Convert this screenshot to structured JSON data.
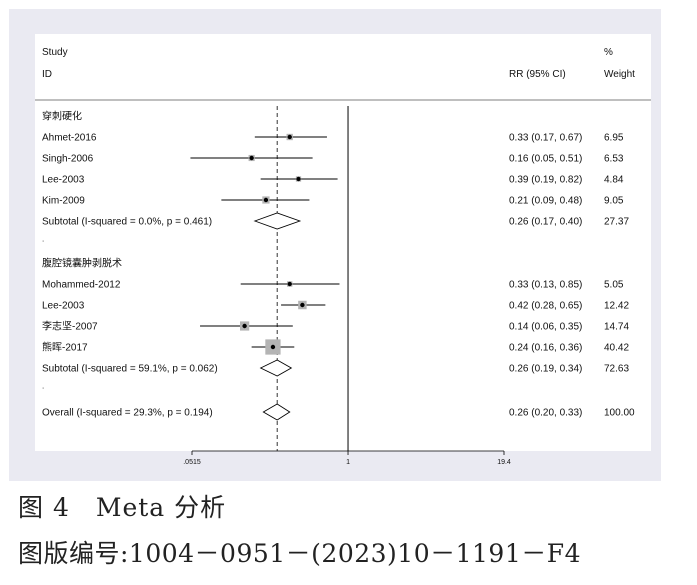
{
  "chart_data": {
    "type": "forest",
    "header": {
      "col1_line1": "Study",
      "col1_line2": "ID",
      "col2": "RR (95% CI)",
      "col3_line1": "%",
      "col3_line2": "Weight"
    },
    "x_scale": "log",
    "x_range": [
      0.0515,
      19.4
    ],
    "x_ticks": [
      {
        "value": 0.0515,
        "label": ".0515"
      },
      {
        "value": 1,
        "label": "1"
      },
      {
        "value": 19.4,
        "label": "19.4"
      }
    ],
    "null_line": 1,
    "overall_line": 0.26,
    "groups": [
      {
        "label": "穿刺硬化",
        "studies": [
          {
            "study": "Ahmet-2016",
            "rr": 0.33,
            "lo": 0.17,
            "hi": 0.67,
            "text": "0.33 (0.17, 0.67)",
            "weight": "6.95",
            "w": 6.95
          },
          {
            "study": "Singh-2006",
            "rr": 0.16,
            "lo": 0.05,
            "hi": 0.51,
            "text": "0.16 (0.05, 0.51)",
            "weight": "6.53",
            "w": 6.53
          },
          {
            "study": "Lee-2003",
            "rr": 0.39,
            "lo": 0.19,
            "hi": 0.82,
            "text": "0.39 (0.19, 0.82)",
            "weight": "4.84",
            "w": 4.84
          },
          {
            "study": "Kim-2009",
            "rr": 0.21,
            "lo": 0.09,
            "hi": 0.48,
            "text": "0.21 (0.09, 0.48)",
            "weight": "9.05",
            "w": 9.05
          }
        ],
        "subtotal": {
          "label": "Subtotal  (I-squared = 0.0%, p = 0.461)",
          "rr": 0.26,
          "lo": 0.17,
          "hi": 0.4,
          "text": "0.26 (0.17, 0.40)",
          "weight": "27.37"
        },
        "spacer": "."
      },
      {
        "label": "腹腔镜囊肿剥脱术",
        "studies": [
          {
            "study": "Mohammed-2012",
            "rr": 0.33,
            "lo": 0.13,
            "hi": 0.85,
            "text": "0.33 (0.13, 0.85)",
            "weight": "5.05",
            "w": 5.05
          },
          {
            "study": "Lee-2003",
            "rr": 0.42,
            "lo": 0.28,
            "hi": 0.65,
            "text": "0.42 (0.28, 0.65)",
            "weight": "12.42",
            "w": 12.42
          },
          {
            "study": "李志坚-2007",
            "rr": 0.14,
            "lo": 0.06,
            "hi": 0.35,
            "text": "0.14 (0.06, 0.35)",
            "weight": "14.74",
            "w": 14.74
          },
          {
            "study": "熊晖-2017",
            "rr": 0.24,
            "lo": 0.16,
            "hi": 0.36,
            "text": "0.24 (0.16, 0.36)",
            "weight": "40.42",
            "w": 40.42
          }
        ],
        "subtotal": {
          "label": "Subtotal  (I-squared = 59.1%, p = 0.062)",
          "rr": 0.26,
          "lo": 0.19,
          "hi": 0.34,
          "text": "0.26 (0.19, 0.34)",
          "weight": "72.63"
        },
        "spacer": "."
      }
    ],
    "overall": {
      "label": "Overall  (I-squared = 29.3%, p = 0.194)",
      "rr": 0.26,
      "lo": 0.2,
      "hi": 0.33,
      "text": "0.26 (0.20, 0.33)",
      "weight": "100.00"
    },
    "colors": {
      "background": "#eaeaf2",
      "plot_area": "#ffffff",
      "weight_box": "#b4b4b4",
      "line": "#000000"
    }
  },
  "caption": {
    "figure": "图 4　Meta 分析",
    "code": "图版编号:1004－0951－(2023)10－1191－F4"
  }
}
